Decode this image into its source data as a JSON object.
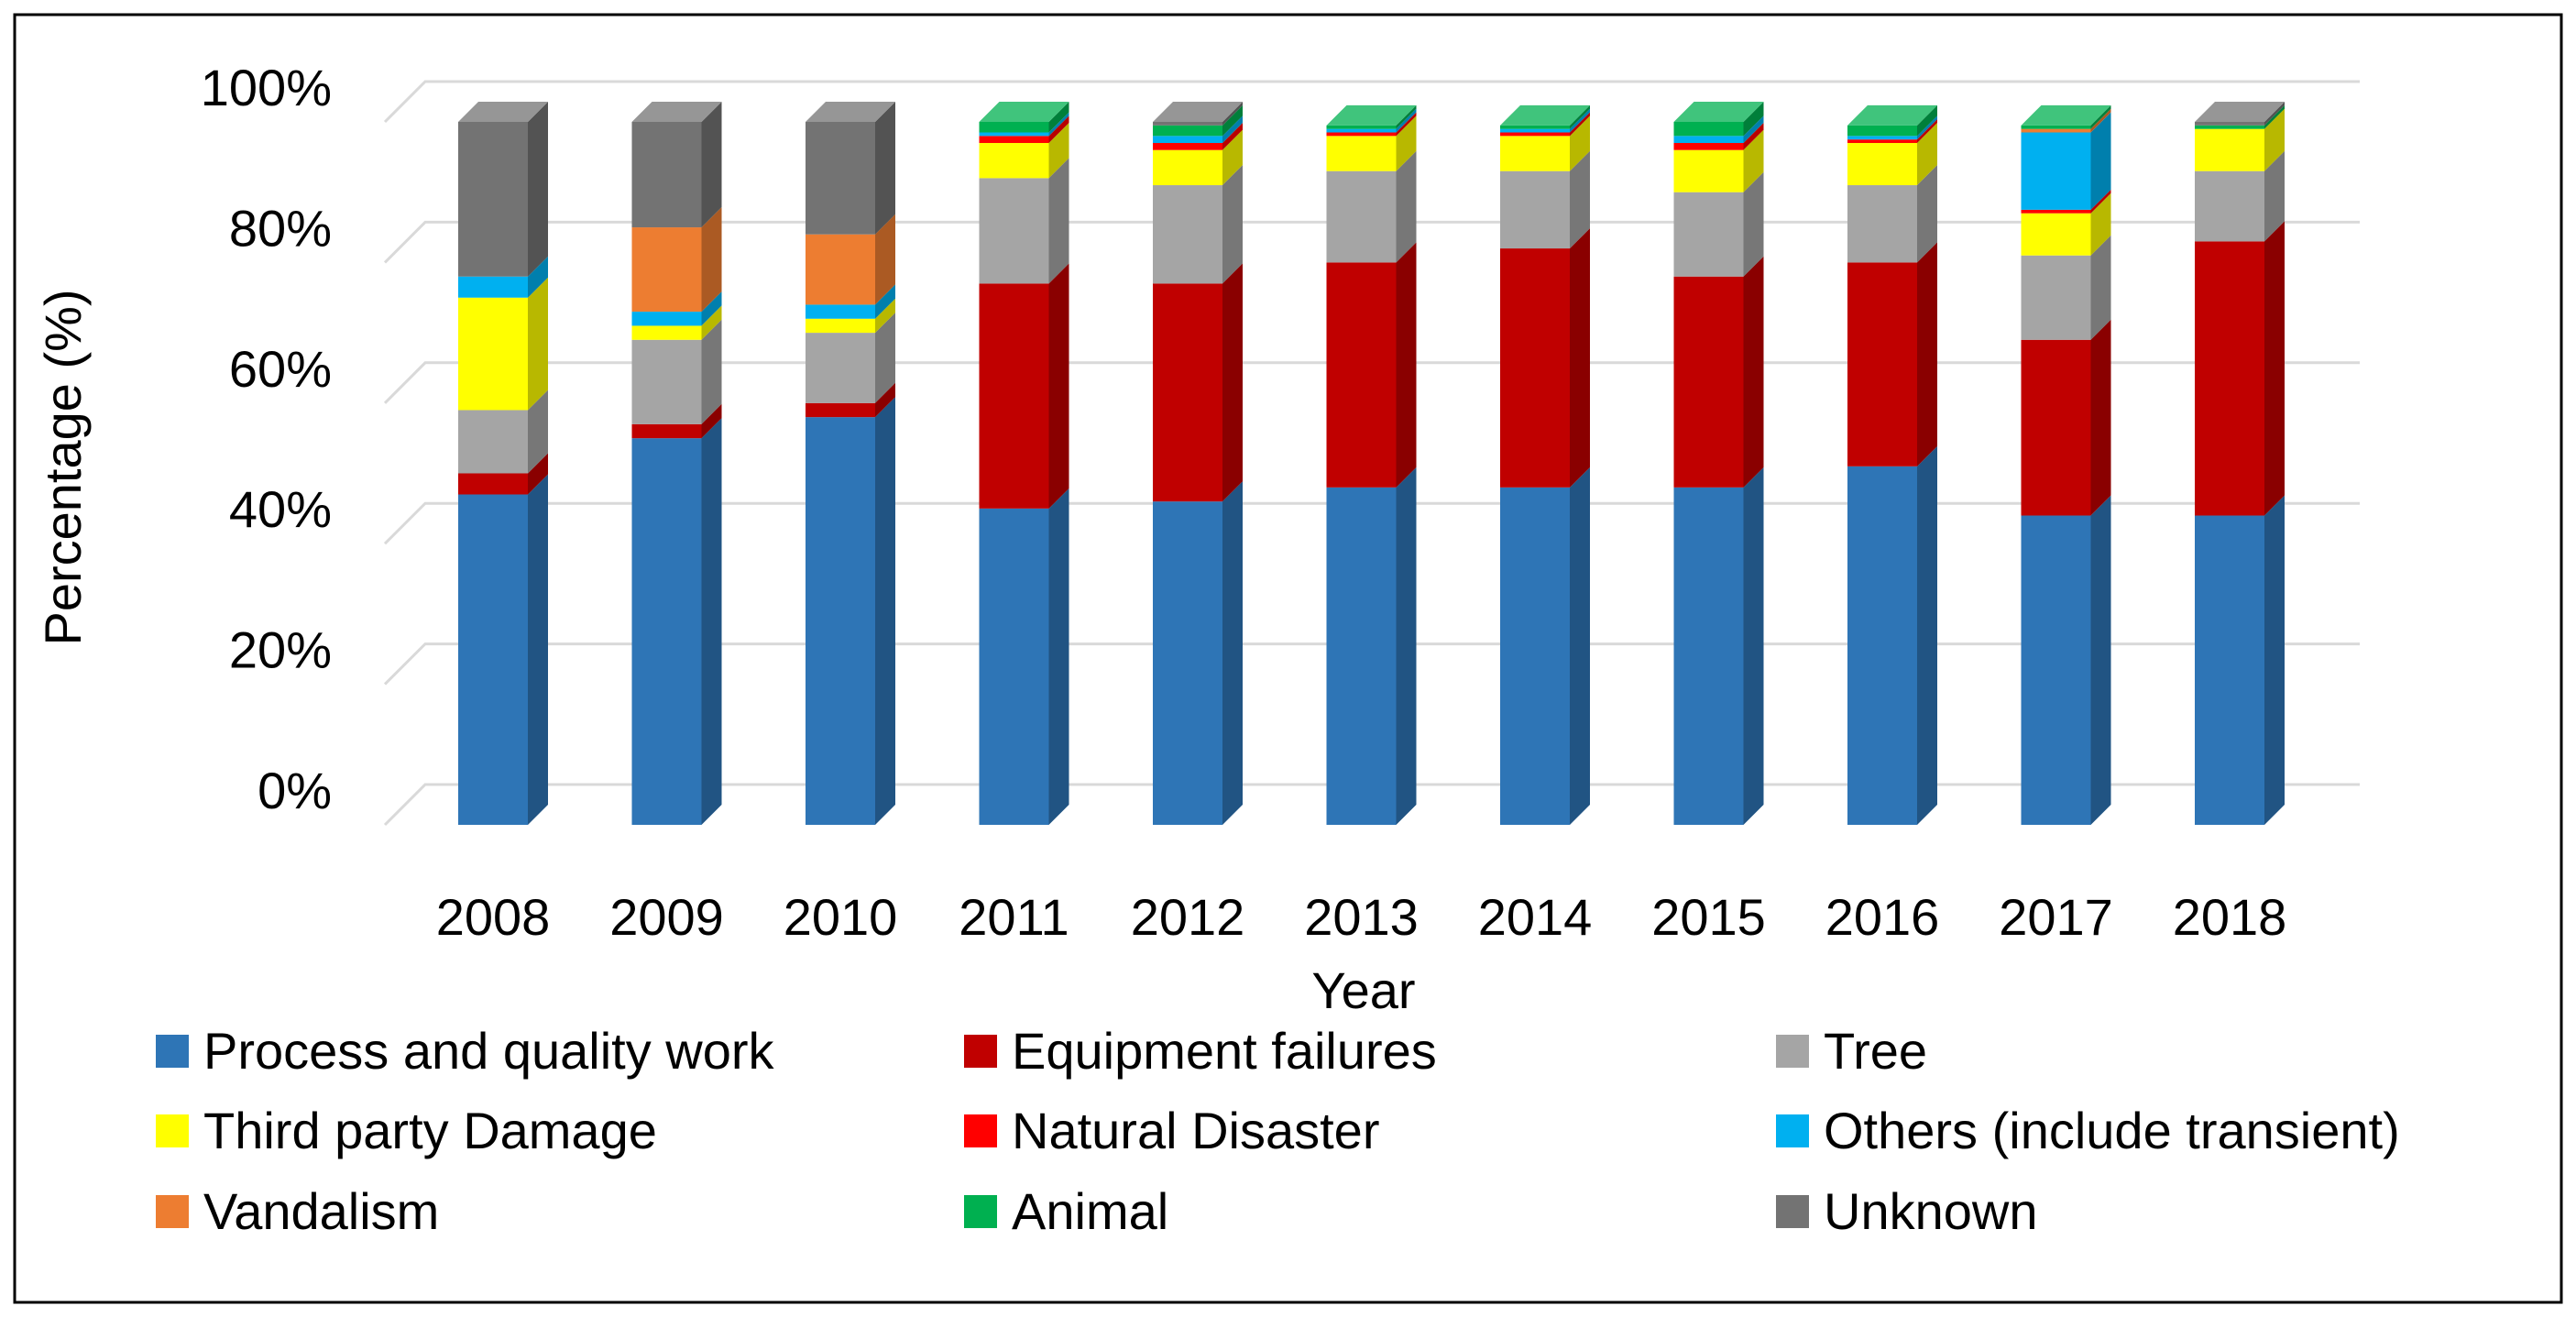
{
  "chart_data": {
    "type": "bar",
    "stacked": true,
    "style": "3d-column-100-percent",
    "title": "",
    "xlabel": "Year",
    "ylabel": "Percentage (%)",
    "ylim": [
      0,
      100
    ],
    "y_ticks": [
      "0%",
      "20%",
      "40%",
      "60%",
      "80%",
      "100%"
    ],
    "y_tick_values": [
      0,
      20,
      40,
      60,
      80,
      100
    ],
    "grid": true,
    "legend_position": "bottom",
    "categories": [
      "2008",
      "2009",
      "2010",
      "2011",
      "2012",
      "2013",
      "2014",
      "2015",
      "2016",
      "2017",
      "2018"
    ],
    "series": [
      {
        "name": "Process and quality work",
        "color": "#2E75B6",
        "values": [
          47,
          55,
          58,
          45,
          46,
          48,
          48,
          48,
          51,
          44,
          44
        ]
      },
      {
        "name": "Equipment failures",
        "color": "#C00000",
        "values": [
          3,
          2,
          2,
          32,
          31,
          32,
          34,
          30,
          29,
          25,
          39
        ]
      },
      {
        "name": "Tree",
        "color": "#A5A5A5",
        "values": [
          9,
          12,
          10,
          15,
          14,
          13,
          11,
          12,
          11,
          12,
          10
        ]
      },
      {
        "name": "Third party Damage",
        "color": "#FFFF00",
        "values": [
          16,
          2,
          2,
          5,
          5,
          5,
          5,
          6,
          6,
          6,
          6
        ]
      },
      {
        "name": "Natural Disaster",
        "color": "#FF0000",
        "values": [
          0,
          0,
          0,
          1,
          1,
          0.5,
          0.5,
          1,
          0.5,
          0.5,
          0
        ]
      },
      {
        "name": "Others (include transient)",
        "color": "#00B0F0",
        "values": [
          3,
          2,
          2,
          0.5,
          1,
          0.5,
          0.5,
          1,
          0.5,
          11,
          0
        ]
      },
      {
        "name": "Vandalism",
        "color": "#ED7D31",
        "values": [
          0,
          12,
          10,
          0,
          0,
          0,
          0,
          0,
          0,
          0.5,
          0
        ]
      },
      {
        "name": "Animal",
        "color": "#00B050",
        "values": [
          0,
          0,
          0,
          1.5,
          1.5,
          0.5,
          0.5,
          2,
          1.5,
          0.5,
          0.5
        ]
      },
      {
        "name": "Unknown",
        "color": "#737373",
        "values": [
          22,
          15,
          16,
          0,
          0.5,
          0,
          0,
          0,
          0,
          0,
          0.5
        ]
      }
    ]
  }
}
